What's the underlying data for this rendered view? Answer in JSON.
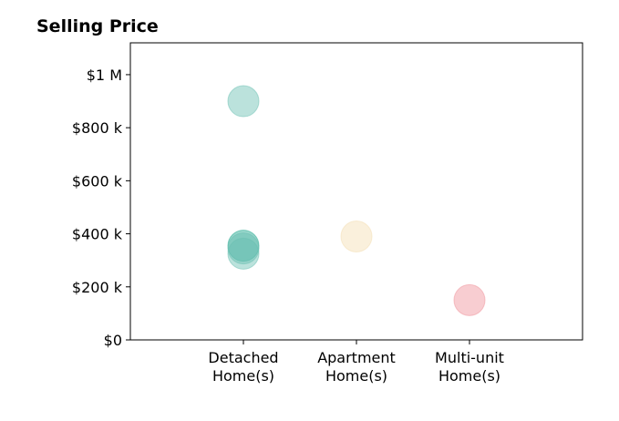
{
  "chart_data": {
    "type": "scatter",
    "title": "Selling Price",
    "xlabel": "",
    "ylabel": "",
    "categories": [
      [
        "Detached",
        "Home(s)"
      ],
      [
        "Apartment",
        "Home(s)"
      ],
      [
        "Multi-unit",
        "Home(s)"
      ]
    ],
    "xlim": [
      -1,
      3
    ],
    "ylim": [
      0,
      1120000
    ],
    "yticks": [
      {
        "value": 0,
        "label": "$0"
      },
      {
        "value": 200000,
        "label": "$200 k"
      },
      {
        "value": 400000,
        "label": "$400 k"
      },
      {
        "value": 600000,
        "label": "$600 k"
      },
      {
        "value": 800000,
        "label": "$800 k"
      },
      {
        "value": 1000000,
        "label": "$1 M"
      }
    ],
    "grid": false,
    "points": [
      {
        "category_index": 0,
        "value": 900000,
        "color": "#69bfb1"
      },
      {
        "category_index": 0,
        "value": 355000,
        "color": "#1ba58c"
      },
      {
        "category_index": 0,
        "value": 345000,
        "color": "#69bfb1"
      },
      {
        "category_index": 0,
        "value": 325000,
        "color": "#69bfb1"
      },
      {
        "category_index": 1,
        "value": 390000,
        "color": "#f3deb1"
      },
      {
        "category_index": 2,
        "value": 150000,
        "color": "#f0919a"
      }
    ]
  }
}
